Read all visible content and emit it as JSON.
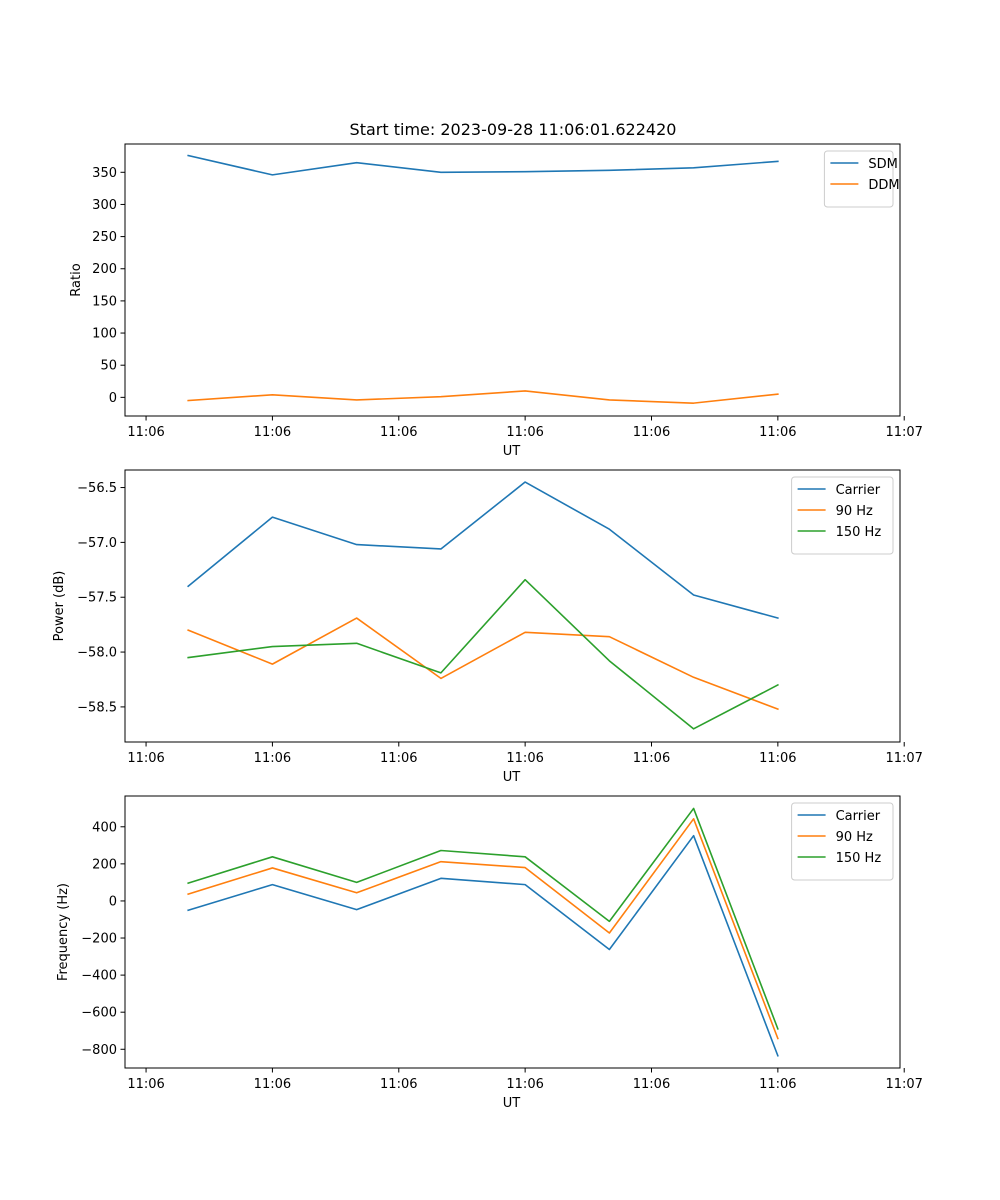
{
  "figure_title": "Start time: 2023-09-28 11:06:01.622420",
  "colors": {
    "blue": "#1f77b4",
    "orange": "#ff7f0e",
    "green": "#2ca02c",
    "axes": "#000000",
    "background": "#ffffff"
  },
  "chart_data": [
    {
      "type": "line",
      "title": "Start time: 2023-09-28 11:06:01.622420",
      "xlabel": "UT",
      "ylabel": "Ratio",
      "legend_position": "top-right",
      "x": [
        0,
        1,
        2,
        3,
        4,
        5,
        6,
        7
      ],
      "xlim": [
        -0.75,
        8.45
      ],
      "ylim": [
        -29,
        394
      ],
      "x_ticks": [
        -0.5,
        1.0,
        2.5,
        4.0,
        5.5,
        7.0,
        8.5
      ],
      "x_tick_labels": [
        "11:06",
        "11:06",
        "11:06",
        "11:06",
        "11:06",
        "11:06",
        "11:07"
      ],
      "y_ticks": [
        0,
        50,
        100,
        150,
        200,
        250,
        300,
        350
      ],
      "y_tick_labels": [
        "0",
        "50",
        "100",
        "150",
        "200",
        "250",
        "300",
        "350"
      ],
      "series": [
        {
          "name": "SDM",
          "color": "#1f77b4",
          "values": [
            376,
            346,
            365,
            350,
            351,
            353,
            357,
            367
          ]
        },
        {
          "name": "DDM",
          "color": "#ff7f0e",
          "values": [
            -5,
            4,
            -4,
            1,
            10,
            -4,
            -9,
            5
          ]
        }
      ]
    },
    {
      "type": "line",
      "title": "",
      "xlabel": "UT",
      "ylabel": "Power (dB)",
      "legend_position": "top-right",
      "x": [
        0,
        1,
        2,
        3,
        4,
        5,
        6,
        7
      ],
      "xlim": [
        -0.75,
        8.45
      ],
      "ylim": [
        -58.82,
        -56.34
      ],
      "x_ticks": [
        -0.5,
        1.0,
        2.5,
        4.0,
        5.5,
        7.0,
        8.5
      ],
      "x_tick_labels": [
        "11:06",
        "11:06",
        "11:06",
        "11:06",
        "11:06",
        "11:06",
        "11:07"
      ],
      "y_ticks": [
        -58.5,
        -58.0,
        -57.5,
        -57.0,
        -56.5
      ],
      "y_tick_labels": [
        "−58.5",
        "−58.0",
        "−57.5",
        "−57.0",
        "−56.5"
      ],
      "series": [
        {
          "name": "Carrier",
          "color": "#1f77b4",
          "values": [
            -57.4,
            -56.77,
            -57.02,
            -57.06,
            -56.45,
            -56.88,
            -57.48,
            -57.69
          ]
        },
        {
          "name": "90 Hz",
          "color": "#ff7f0e",
          "values": [
            -57.8,
            -58.11,
            -57.69,
            -58.24,
            -57.82,
            -57.86,
            -58.23,
            -58.52
          ]
        },
        {
          "name": "150 Hz",
          "color": "#2ca02c",
          "values": [
            -58.05,
            -57.95,
            -57.92,
            -58.19,
            -57.34,
            -58.08,
            -58.7,
            -58.3
          ]
        }
      ]
    },
    {
      "type": "line",
      "title": "",
      "xlabel": "UT",
      "ylabel": "Frequency (Hz)",
      "legend_position": "top-right",
      "x": [
        0,
        1,
        2,
        3,
        4,
        5,
        6,
        7
      ],
      "xlim": [
        -0.75,
        8.45
      ],
      "ylim": [
        -901,
        566
      ],
      "x_ticks": [
        -0.5,
        1.0,
        2.5,
        4.0,
        5.5,
        7.0,
        8.5
      ],
      "x_tick_labels": [
        "11:06",
        "11:06",
        "11:06",
        "11:06",
        "11:06",
        "11:06",
        "11:07"
      ],
      "y_ticks": [
        -800,
        -600,
        -400,
        -200,
        0,
        200,
        400
      ],
      "y_tick_labels": [
        "−800",
        "−600",
        "−400",
        "−200",
        "0",
        "200",
        "400"
      ],
      "series": [
        {
          "name": "Carrier",
          "color": "#1f77b4",
          "values": [
            -50,
            88,
            -47,
            122,
            88,
            -262,
            352,
            -835
          ]
        },
        {
          "name": "90 Hz",
          "color": "#ff7f0e",
          "values": [
            37,
            178,
            44,
            212,
            180,
            -173,
            443,
            -742
          ]
        },
        {
          "name": "150 Hz",
          "color": "#2ca02c",
          "values": [
            96,
            238,
            100,
            272,
            238,
            -110,
            499,
            -690
          ]
        }
      ]
    }
  ]
}
